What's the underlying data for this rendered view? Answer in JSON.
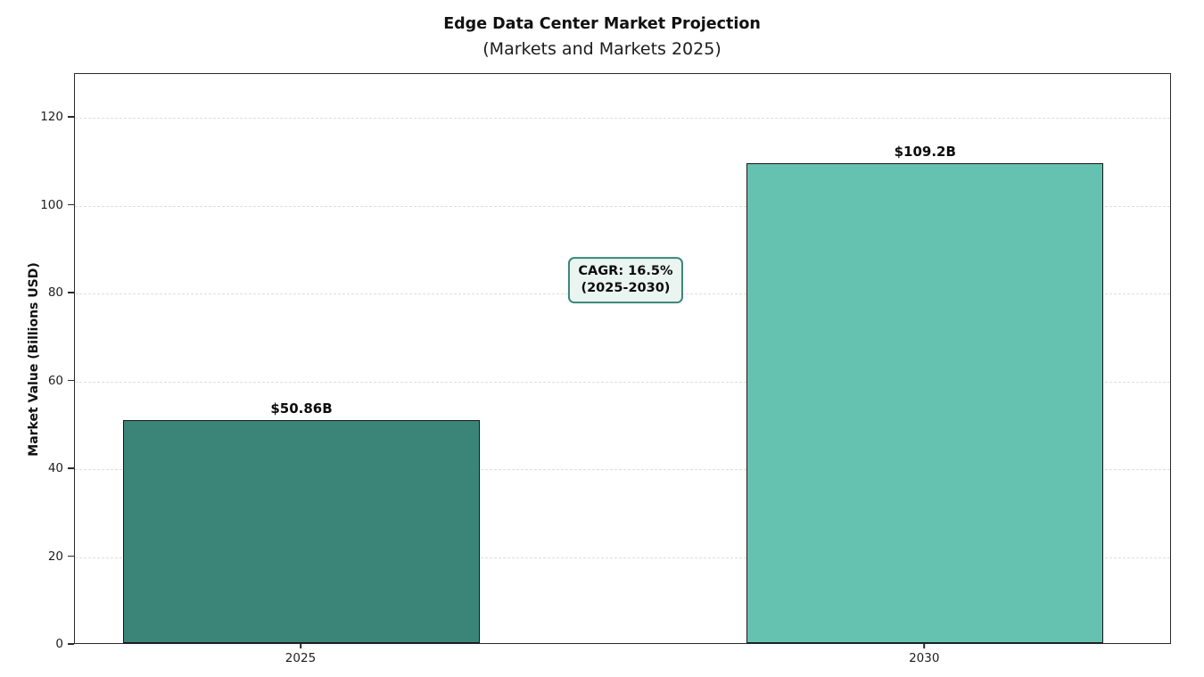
{
  "chart_data": {
    "type": "bar",
    "title": "Edge Data Center Market Projection",
    "subtitle": "(Markets and Markets 2025)",
    "ylabel": "Market Value (Billions USD)",
    "xlabel": "",
    "categories": [
      "2025",
      "2030"
    ],
    "values": [
      50.86,
      109.2
    ],
    "bar_value_labels": [
      "$50.86B",
      "$109.2B"
    ],
    "bar_colors": [
      "#3a8577",
      "#66c2b0"
    ],
    "bar_edge_color": "#161616",
    "ylim": [
      0,
      130
    ],
    "yticks": [
      0,
      20,
      40,
      60,
      80,
      100,
      120
    ],
    "grid": "horizontal-dashed",
    "gridline_color": "#dedede",
    "legend": "none",
    "annotation": {
      "line1": "CAGR: 16.5%",
      "line2": "(2025-2030)",
      "border_color": "#3a8577",
      "background_color": "#eaf5f1",
      "text_color": "#0c0c0c"
    }
  }
}
